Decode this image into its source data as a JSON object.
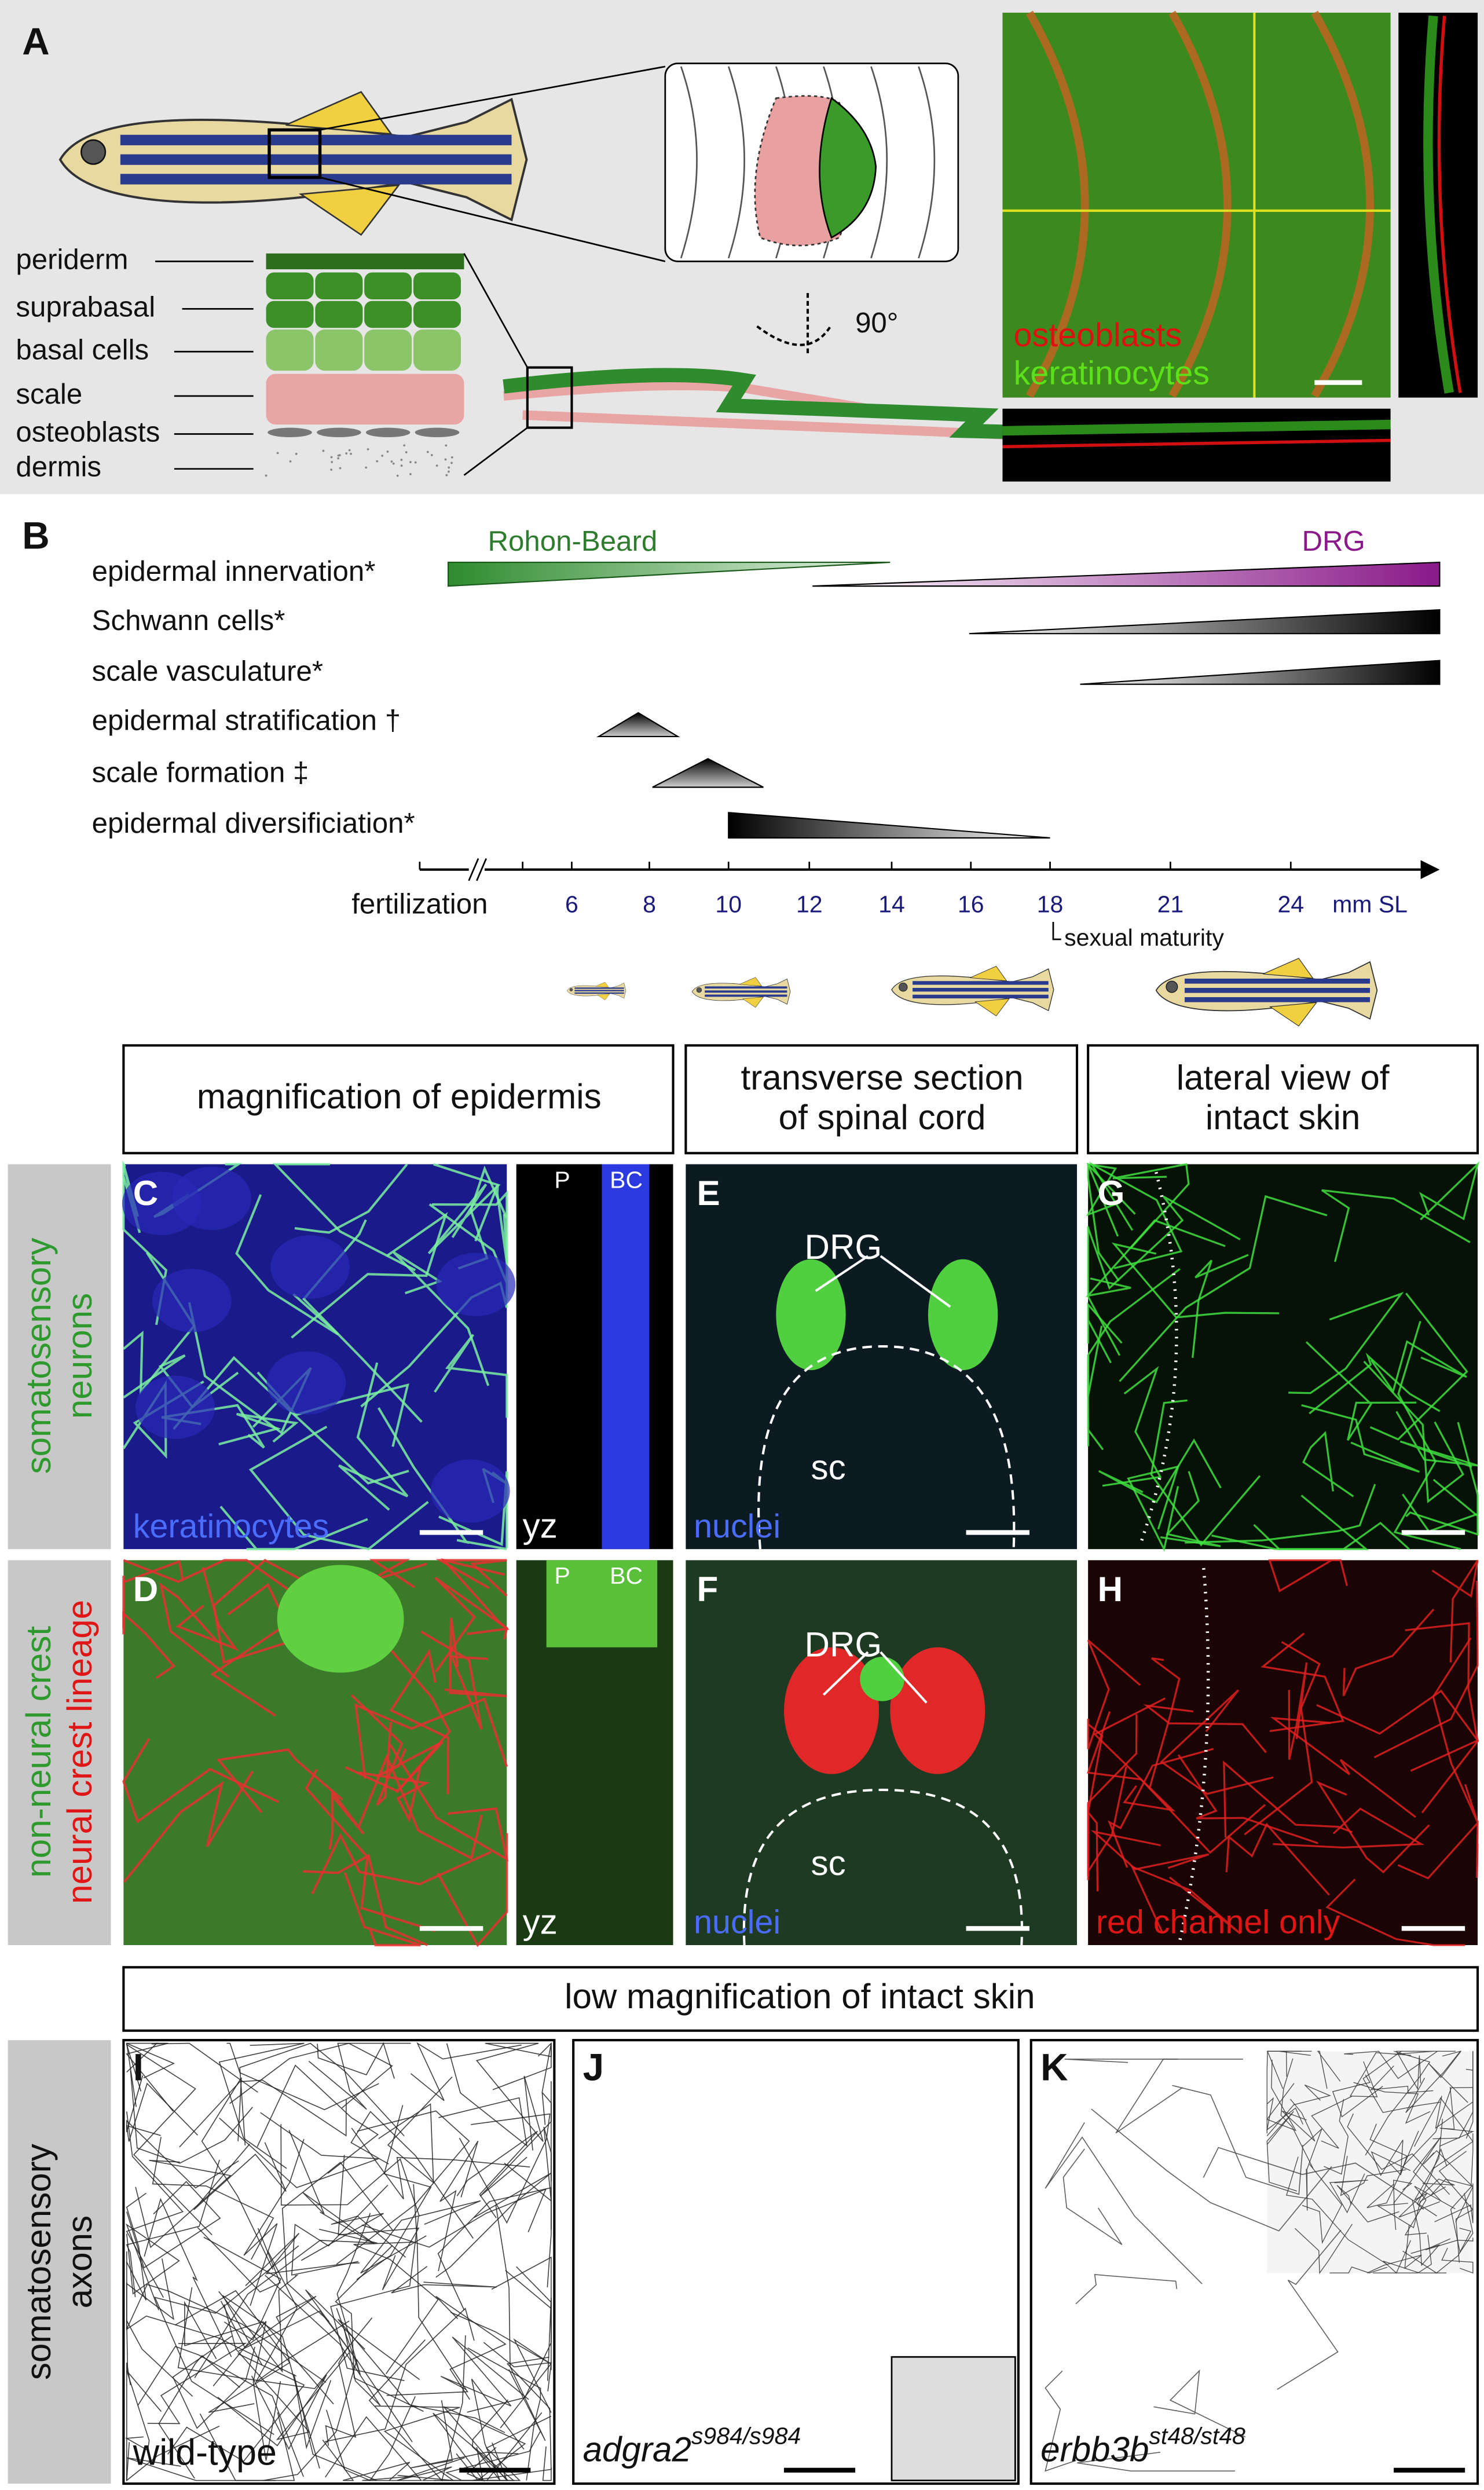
{
  "panel_a": {
    "label": "A",
    "layers": [
      "periderm",
      "suprabasal",
      "basal cells",
      "scale",
      "osteoblasts",
      "dermis"
    ],
    "rotation": "90°",
    "legend": [
      "osteoblasts",
      "keratinocytes"
    ]
  },
  "panel_b": {
    "label": "B",
    "rows": [
      "epidermal innervation*",
      "Schwann cells*",
      "scale vasculature*",
      "epidermal stratification †",
      "scale formation ‡",
      "epidermal diversificiation*"
    ],
    "innervation_labels": [
      "Rohon-Beard",
      "DRG"
    ],
    "axis_start": "fertilization",
    "ticks": [
      "6",
      "8",
      "10",
      "12",
      "14",
      "16",
      "18",
      "21",
      "24"
    ],
    "unit": "mm SL",
    "note": "sexual maturity"
  },
  "column_headers": [
    [
      "magnification of epidermis"
    ],
    [
      "transverse section",
      "of spinal cord"
    ],
    [
      "lateral view of",
      "intact skin"
    ]
  ],
  "row_headers": [
    [
      "somatosensory",
      "neurons"
    ],
    [
      "non-neural crest",
      "neural crest lineage"
    ],
    [
      "somatosensory",
      "axons"
    ]
  ],
  "panels": {
    "C": {
      "label": "C",
      "channel": "keratinocytes",
      "view": "yz",
      "marks": [
        "P",
        "BC"
      ]
    },
    "D": {
      "label": "D",
      "view": "yz",
      "marks": [
        "P",
        "BC"
      ]
    },
    "E": {
      "label": "E",
      "structure": "DRG",
      "region": "sc",
      "channel": "nuclei"
    },
    "F": {
      "label": "F",
      "structure": "DRG",
      "region": "sc",
      "channel": "nuclei"
    },
    "G": {
      "label": "G"
    },
    "H": {
      "label": "H",
      "channel": "red channel only"
    },
    "I": {
      "label": "I",
      "genotype": "wild-type"
    },
    "J": {
      "label": "J",
      "gene": "adgra2",
      "allele": "s984/s984"
    },
    "K": {
      "label": "K",
      "gene": "erbb3b",
      "allele": "st48/st48"
    }
  },
  "bottom_header": "low magnification of intact skin"
}
